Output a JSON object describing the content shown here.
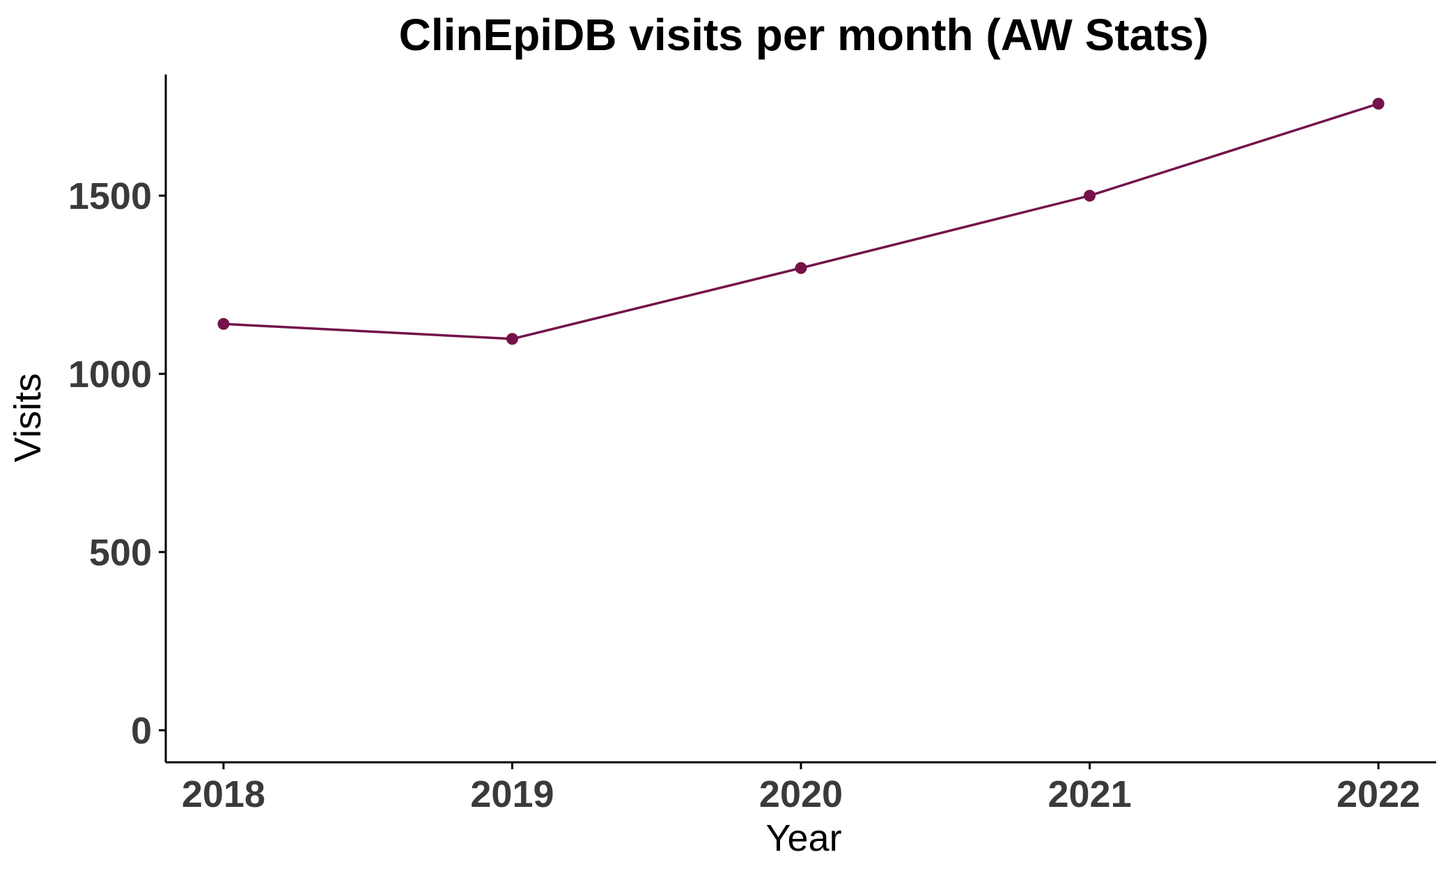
{
  "chart_data": {
    "type": "line",
    "title": "ClinEpiDB visits per month (AW Stats)",
    "xlabel": "Year",
    "ylabel": "Visits",
    "x": [
      2018,
      2019,
      2020,
      2021,
      2022
    ],
    "x_tick_labels": [
      "2018",
      "2019",
      "2020",
      "2021",
      "2022"
    ],
    "y_ticks": [
      0,
      500,
      1000,
      1500
    ],
    "y_tick_labels": [
      "0",
      "500",
      "1000",
      "1500"
    ],
    "ylim": [
      -90,
      1840
    ],
    "xlim": [
      2017.8,
      2022.2
    ],
    "grid": false,
    "legend": "none",
    "series": [
      {
        "values": [
          1140,
          1098,
          1297,
          1500,
          1758
        ],
        "color": "#74134a"
      }
    ]
  }
}
